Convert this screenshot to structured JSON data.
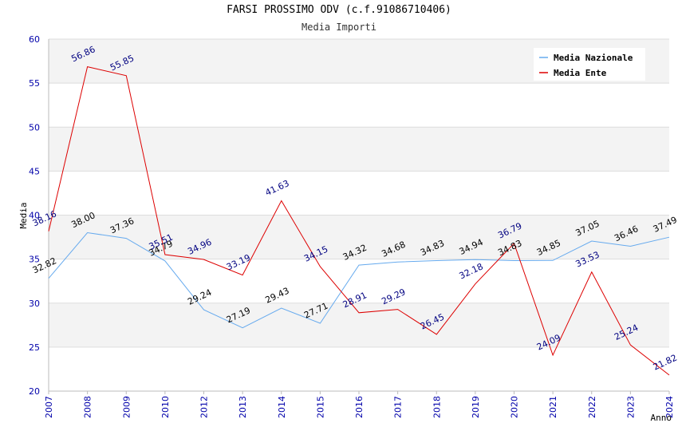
{
  "chart_data": {
    "type": "line",
    "title": "FARSI PROSSIMO ODV (c.f.91086710406)",
    "subtitle": "Media Importi",
    "xlabel": "Anno",
    "ylabel": "Media",
    "ylim": [
      20,
      60
    ],
    "yticks": [
      20,
      25,
      30,
      35,
      40,
      45,
      50,
      55,
      60
    ],
    "categories": [
      "2007",
      "2008",
      "2009",
      "2010",
      "2012",
      "2013",
      "2014",
      "2015",
      "2016",
      "2017",
      "2018",
      "2019",
      "2020",
      "2021",
      "2022",
      "2023",
      "2024"
    ],
    "legend_position": "top-right",
    "series": [
      {
        "name": "Media Nazionale",
        "color": "#66aaee",
        "label_color": "#000000",
        "values": [
          32.82,
          38.0,
          37.36,
          34.79,
          29.24,
          27.19,
          29.43,
          27.71,
          34.32,
          34.68,
          34.83,
          34.94,
          34.83,
          34.85,
          37.05,
          36.46,
          37.49
        ],
        "labels": [
          "32.82",
          "38.00",
          "37.36",
          "34.79",
          "29.24",
          "27.19",
          "29.43",
          "27.71",
          "34.32",
          "34.68",
          "34.83",
          "34.94",
          "34.83",
          "34.85",
          "37.05",
          "36.46",
          "37.49"
        ]
      },
      {
        "name": "Media Ente",
        "color": "#dd0000",
        "label_color": "#000080",
        "values": [
          38.16,
          56.86,
          55.85,
          35.51,
          34.96,
          33.19,
          41.63,
          34.15,
          28.91,
          29.29,
          26.45,
          32.18,
          36.79,
          24.09,
          33.53,
          25.24,
          21.82
        ],
        "labels": [
          "38.16",
          "56.86",
          "55.85",
          "35.51",
          "34.96",
          "33.19",
          "41.63",
          "34.15",
          "28.91",
          "29.29",
          "26.45",
          "32.18",
          "36.79",
          "24.09",
          "33.53",
          "25.24",
          "21.82"
        ]
      }
    ]
  }
}
